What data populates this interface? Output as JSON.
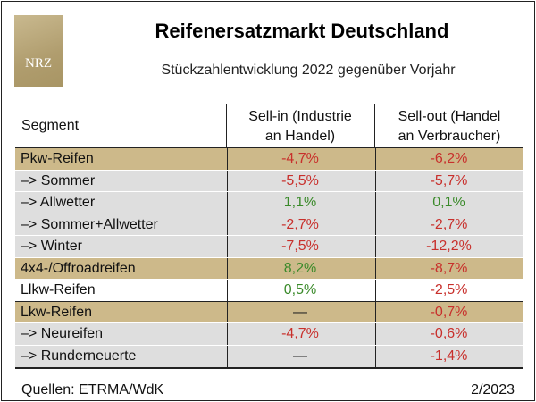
{
  "logo": {
    "text": "NRZ"
  },
  "colors": {
    "accent_row": "#cdb98a",
    "sub_row": "#dedede",
    "negative": "#c8302c",
    "positive": "#3a8a2a"
  },
  "chart_data": {
    "type": "table",
    "title": "Reifenersatzmarkt Deutschland",
    "subtitle": "Stückzahlentwicklung 2022 gegenüber Vorjahr",
    "columns": {
      "segment": "Segment",
      "sell_in": [
        "Sell-in (Industrie",
        "an Handel)"
      ],
      "sell_out": [
        "Sell-out (Handel",
        "an Verbraucher)"
      ]
    },
    "rows": [
      {
        "label": "Pkw-Reifen",
        "sell_in": "-4,7%",
        "sell_out": "-6,2%"
      },
      {
        "label": "–> Sommer",
        "sell_in": "-5,5%",
        "sell_out": "-5,7%"
      },
      {
        "label": "–> Allwetter",
        "sell_in": "1,1%",
        "sell_out": "0,1%"
      },
      {
        "label": "–> Sommer+Allwetter",
        "sell_in": "-2,7%",
        "sell_out": "-2,7%"
      },
      {
        "label": "–> Winter",
        "sell_in": "-7,5%",
        "sell_out": "-12,2%"
      },
      {
        "label": "4x4-/Offroadreifen",
        "sell_in": "8,2%",
        "sell_out": "-8,7%"
      },
      {
        "label": "Llkw-Reifen",
        "sell_in": "0,5%",
        "sell_out": "-2,5%"
      },
      {
        "label": "Lkw-Reifen",
        "sell_in": "—",
        "sell_out": "-0,7%"
      },
      {
        "label": "–> Neureifen",
        "sell_in": "-4,7%",
        "sell_out": "-0,6%"
      },
      {
        "label": "–> Runderneuerte",
        "sell_in": "—",
        "sell_out": "-1,4%"
      }
    ],
    "source": "Quellen: ETRMA/WdK",
    "date": "2/2023"
  }
}
